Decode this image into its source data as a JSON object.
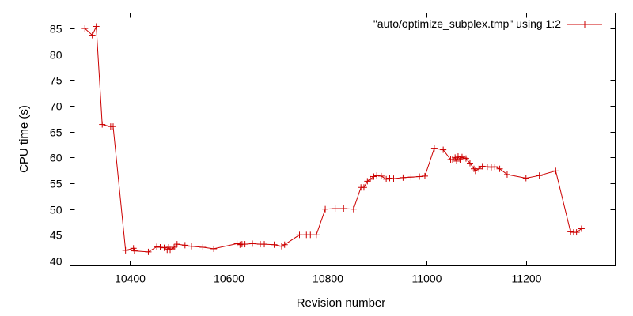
{
  "chart_data": {
    "type": "line",
    "title": "",
    "xlabel": "Revision number",
    "ylabel": "CPU time (s)",
    "xlim": [
      10280,
      11380
    ],
    "ylim": [
      39,
      88
    ],
    "x_ticks": [
      10400,
      10600,
      10800,
      11000,
      11200
    ],
    "y_ticks": [
      40,
      45,
      50,
      55,
      60,
      65,
      70,
      75,
      80,
      85
    ],
    "grid": false,
    "legend_position": "top-right",
    "series": [
      {
        "name": "\"auto/optimize_subplex.tmp\" using 1:2",
        "color": "#cc0000",
        "marker": "plus",
        "x": [
          10310,
          10325,
          10333,
          10345,
          10362,
          10367,
          10392,
          10408,
          10410,
          10438,
          10455,
          10462,
          10470,
          10476,
          10479,
          10482,
          10486,
          10490,
          10496,
          10512,
          10525,
          10548,
          10570,
          10617,
          10623,
          10627,
          10633,
          10648,
          10664,
          10672,
          10692,
          10707,
          10713,
          10743,
          10757,
          10765,
          10777,
          10795,
          10815,
          10832,
          10852,
          10867,
          10873,
          10880,
          10886,
          10893,
          10899,
          10908,
          10918,
          10925,
          10933,
          10952,
          10968,
          10985,
          10996,
          11015,
          11033,
          11048,
          11052,
          11057,
          11060,
          11063,
          11067,
          11071,
          11075,
          11079,
          11087,
          11095,
          11098,
          11105,
          11112,
          11122,
          11130,
          11137,
          11147,
          11162,
          11200,
          11227,
          11260,
          11290,
          11296,
          11302,
          11312
        ],
        "values": [
          85.0,
          83.7,
          85.4,
          66.4,
          66.0,
          66.0,
          42.0,
          42.4,
          41.9,
          41.7,
          42.7,
          42.6,
          42.5,
          42.1,
          42.6,
          42.1,
          42.3,
          42.6,
          43.2,
          43.0,
          42.8,
          42.6,
          42.3,
          43.3,
          43.1,
          43.2,
          43.2,
          43.3,
          43.2,
          43.2,
          43.1,
          42.8,
          43.1,
          45.0,
          45.0,
          45.0,
          45.0,
          50.0,
          50.1,
          50.1,
          50.0,
          54.2,
          54.2,
          55.4,
          55.8,
          56.3,
          56.5,
          56.4,
          55.8,
          56.0,
          55.9,
          56.1,
          56.2,
          56.3,
          56.4,
          61.8,
          61.5,
          59.6,
          59.6,
          60.0,
          59.3,
          60.2,
          59.6,
          60.1,
          59.9,
          59.8,
          58.9,
          57.8,
          57.4,
          57.8,
          58.3,
          58.2,
          58.1,
          58.2,
          57.8,
          56.7,
          56.0,
          56.5,
          57.4,
          45.6,
          45.5,
          45.5,
          46.2
        ]
      }
    ]
  }
}
